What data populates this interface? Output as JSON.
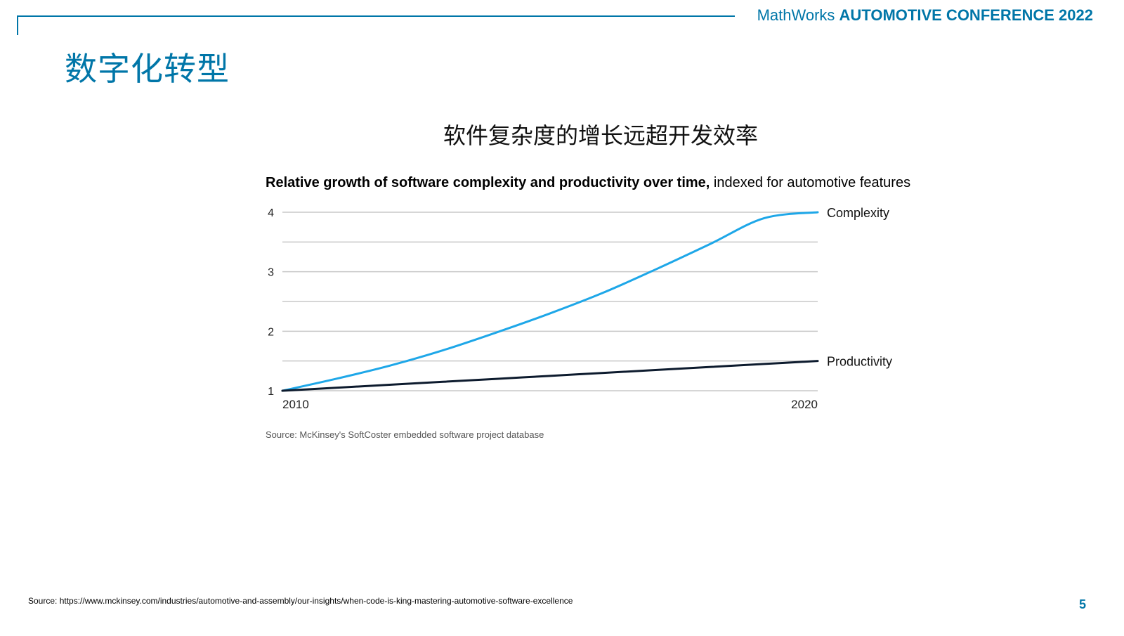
{
  "header": {
    "brand": "MathWorks",
    "conference": "AUTOMOTIVE CONFERENCE 2022"
  },
  "slide": {
    "title": "数字化转型",
    "chart_heading": "软件复杂度的增长远超开发效率",
    "footer_source": "Source: https://www.mckinsey.com/industries/automotive-and-assembly/our-insights/when-code-is-king-mastering-automotive-software-excellence",
    "page_number": "5"
  },
  "chart_data": {
    "type": "line",
    "title_bold": "Relative growth of software complexity and productivity over time,",
    "title_regular": " indexed for automotive features",
    "source": "Source: McKinsey's SoftCoster embedded software project database",
    "x": [
      2010,
      2011,
      2012,
      2013,
      2014,
      2015,
      2016,
      2017,
      2018,
      2019,
      2020
    ],
    "x_tick_labels": [
      "2010",
      "2020"
    ],
    "y_ticks": [
      1,
      2,
      3,
      4
    ],
    "gridlines": [
      1,
      1.5,
      2,
      2.5,
      3,
      3.5,
      4
    ],
    "ylim": [
      1,
      4
    ],
    "grid": true,
    "legend_placement": "line-end labels on right",
    "series": [
      {
        "name": "Complexity",
        "color": "#1ea7e8",
        "values": [
          1.0,
          1.2,
          1.42,
          1.68,
          1.98,
          2.3,
          2.65,
          3.05,
          3.47,
          3.9,
          4.0
        ]
      },
      {
        "name": "Productivity",
        "color": "#0d1b2e",
        "values": [
          1.0,
          1.05,
          1.1,
          1.15,
          1.2,
          1.25,
          1.3,
          1.35,
          1.4,
          1.45,
          1.5
        ]
      }
    ]
  }
}
